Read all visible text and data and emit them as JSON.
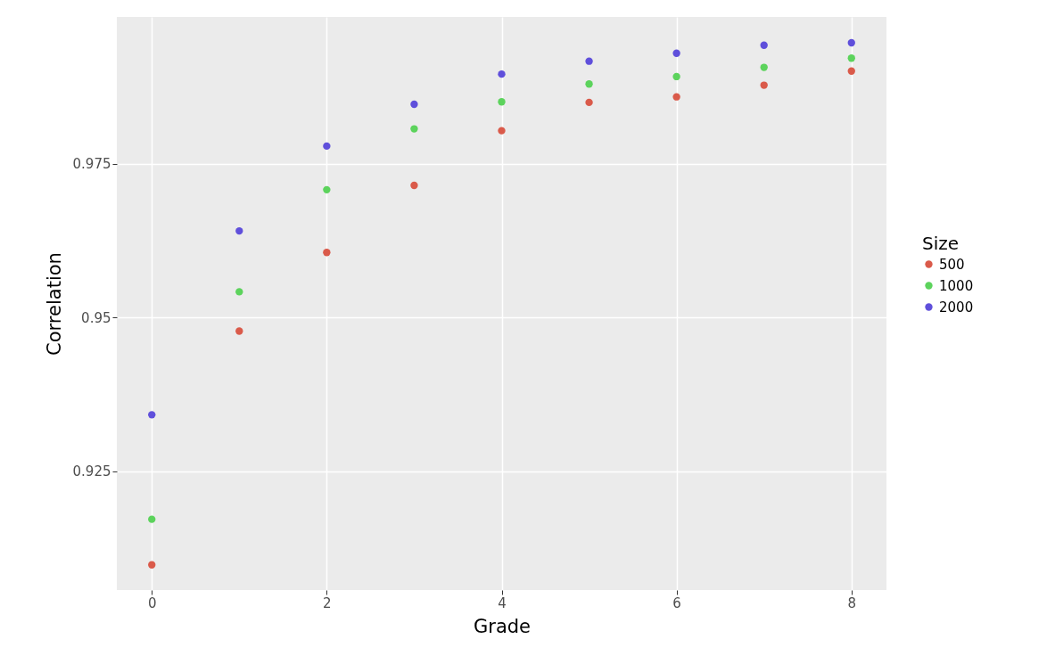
{
  "chart_data": {
    "type": "scatter",
    "xlabel": "Grade",
    "ylabel": "Correlation",
    "legend_title": "Size",
    "legend": "right",
    "grid": true,
    "marker": "circle",
    "x": [
      0,
      1,
      2,
      3,
      4,
      5,
      6,
      7,
      8
    ],
    "xlim": [
      -0.4,
      8.4
    ],
    "xticks": [
      0,
      2,
      4,
      6,
      8
    ],
    "ylim": [
      0.9057,
      0.9989
    ],
    "yticks": [
      0.925,
      0.95,
      0.975
    ],
    "series": [
      {
        "name": "500",
        "color": "#da5a4a",
        "values": [
          0.9098,
          0.9478,
          0.9606,
          0.9715,
          0.9804,
          0.985,
          0.9859,
          0.9878,
          0.9901
        ]
      },
      {
        "name": "1000",
        "color": "#5cd35c",
        "values": [
          0.9172,
          0.9542,
          0.9708,
          0.9807,
          0.9851,
          0.988,
          0.9892,
          0.9907,
          0.9922
        ]
      },
      {
        "name": "2000",
        "color": "#5f4fdb",
        "values": [
          0.9342,
          0.9641,
          0.9779,
          0.9847,
          0.9896,
          0.9917,
          0.993,
          0.9943,
          0.9947
        ]
      }
    ]
  }
}
